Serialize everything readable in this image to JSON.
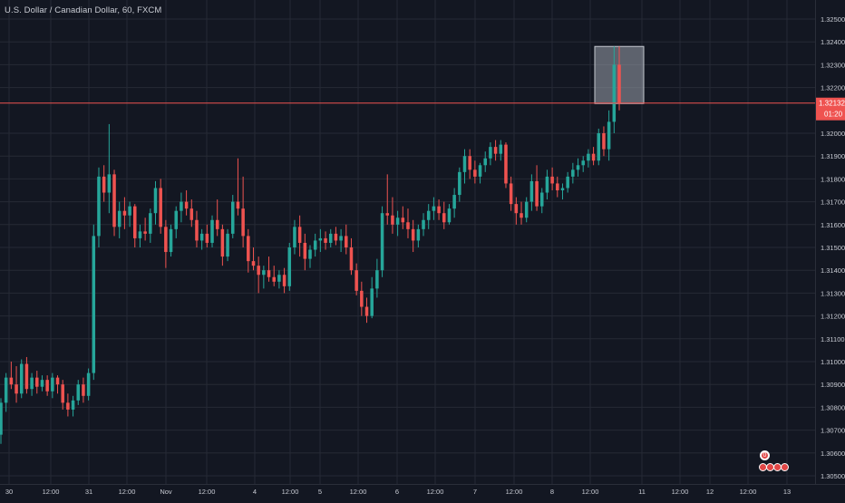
{
  "title": "U.S. Dollar / Canadian Dollar, 60, FXCM",
  "colors": {
    "background": "#131722",
    "grid": "#262a35",
    "up": "#26a69a",
    "down": "#ef5350",
    "text": "#c9ccd4",
    "price_line": "#ef5350",
    "highlight": "#9aa0ab"
  },
  "current_price": {
    "value": "1.32132",
    "countdown": "01:20"
  },
  "events": {
    "single": "0",
    "group_count": 4
  },
  "chart_data": {
    "type": "candlestick",
    "title": "U.S. Dollar / Canadian Dollar, 60, FXCM",
    "y_range": [
      1.3048,
      1.3258
    ],
    "y_ticks": [
      "1.32500",
      "1.32400",
      "1.32300",
      "1.32200",
      "1.32000",
      "1.31900",
      "1.31800",
      "1.31700",
      "1.31600",
      "1.31500",
      "1.31400",
      "1.31300",
      "1.31200",
      "1.31100",
      "1.31000",
      "1.30900",
      "1.30800",
      "1.30700",
      "1.30600",
      "1.30500"
    ],
    "x_ticks": [
      "30",
      "12:00",
      "31",
      "12:00",
      "Nov",
      "12:00",
      "4",
      "12:00",
      "5",
      "12:00",
      "6",
      "12:00",
      "7",
      "12:00",
      "8",
      "12:00",
      "11",
      "12:00",
      "12",
      "12:00",
      "13"
    ],
    "highlight_range": {
      "low": 1.3213,
      "high": 1.3238
    },
    "candles": [
      [
        1.3068,
        1.3084,
        1.3064,
        1.3082
      ],
      [
        1.3082,
        1.3095,
        1.3078,
        1.3093
      ],
      [
        1.3093,
        1.31,
        1.3088,
        1.309
      ],
      [
        1.309,
        1.3098,
        1.3082,
        1.3086
      ],
      [
        1.3086,
        1.3101,
        1.3084,
        1.3099
      ],
      [
        1.3099,
        1.3102,
        1.3086,
        1.3088
      ],
      [
        1.3088,
        1.3095,
        1.3085,
        1.3093
      ],
      [
        1.3093,
        1.3096,
        1.3086,
        1.3089
      ],
      [
        1.3089,
        1.3094,
        1.3087,
        1.3092
      ],
      [
        1.3092,
        1.3094,
        1.3085,
        1.3087
      ],
      [
        1.3087,
        1.3095,
        1.3084,
        1.3093
      ],
      [
        1.3093,
        1.3094,
        1.3086,
        1.309
      ],
      [
        1.309,
        1.3092,
        1.3079,
        1.3082
      ],
      [
        1.3082,
        1.3086,
        1.3076,
        1.3079
      ],
      [
        1.3079,
        1.3085,
        1.3076,
        1.3083
      ],
      [
        1.3083,
        1.3092,
        1.3081,
        1.309
      ],
      [
        1.309,
        1.3093,
        1.3082,
        1.3085
      ],
      [
        1.3085,
        1.3097,
        1.3083,
        1.3095
      ],
      [
        1.3095,
        1.316,
        1.3092,
        1.3155
      ],
      [
        1.3155,
        1.3185,
        1.315,
        1.3181
      ],
      [
        1.3181,
        1.3186,
        1.317,
        1.3174
      ],
      [
        1.3174,
        1.3204,
        1.3165,
        1.3182
      ],
      [
        1.3182,
        1.3184,
        1.3155,
        1.3159
      ],
      [
        1.3159,
        1.317,
        1.3154,
        1.3166
      ],
      [
        1.3166,
        1.3172,
        1.3158,
        1.3164
      ],
      [
        1.3164,
        1.317,
        1.3159,
        1.3168
      ],
      [
        1.3168,
        1.3169,
        1.315,
        1.3154
      ],
      [
        1.3154,
        1.316,
        1.315,
        1.3157
      ],
      [
        1.3157,
        1.3163,
        1.3153,
        1.3156
      ],
      [
        1.3156,
        1.3167,
        1.3152,
        1.3165
      ],
      [
        1.3165,
        1.3179,
        1.316,
        1.3176
      ],
      [
        1.3176,
        1.318,
        1.3156,
        1.3159
      ],
      [
        1.3159,
        1.3162,
        1.3141,
        1.3148
      ],
      [
        1.3148,
        1.316,
        1.3146,
        1.3158
      ],
      [
        1.3158,
        1.3168,
        1.3154,
        1.3166
      ],
      [
        1.3166,
        1.3174,
        1.3161,
        1.317
      ],
      [
        1.317,
        1.3175,
        1.3164,
        1.3167
      ],
      [
        1.3167,
        1.3171,
        1.3159,
        1.3162
      ],
      [
        1.3162,
        1.3166,
        1.315,
        1.3153
      ],
      [
        1.3153,
        1.3158,
        1.3149,
        1.3156
      ],
      [
        1.3156,
        1.316,
        1.315,
        1.3152
      ],
      [
        1.3152,
        1.3164,
        1.315,
        1.3162
      ],
      [
        1.3162,
        1.3171,
        1.3155,
        1.3158
      ],
      [
        1.3158,
        1.316,
        1.3142,
        1.3146
      ],
      [
        1.3146,
        1.3158,
        1.3144,
        1.3156
      ],
      [
        1.3156,
        1.3173,
        1.3154,
        1.317
      ],
      [
        1.317,
        1.3189,
        1.3164,
        1.3167
      ],
      [
        1.3167,
        1.3181,
        1.315,
        1.3155
      ],
      [
        1.3155,
        1.3158,
        1.3139,
        1.3144
      ],
      [
        1.3144,
        1.315,
        1.314,
        1.3142
      ],
      [
        1.3142,
        1.3146,
        1.313,
        1.3138
      ],
      [
        1.3138,
        1.3142,
        1.3132,
        1.314
      ],
      [
        1.314,
        1.3146,
        1.3135,
        1.3137
      ],
      [
        1.3137,
        1.3142,
        1.3133,
        1.3135
      ],
      [
        1.3135,
        1.314,
        1.3132,
        1.3138
      ],
      [
        1.3138,
        1.3141,
        1.313,
        1.3133
      ],
      [
        1.3133,
        1.3152,
        1.3131,
        1.315
      ],
      [
        1.315,
        1.3162,
        1.3147,
        1.3159
      ],
      [
        1.3159,
        1.3164,
        1.3146,
        1.3152
      ],
      [
        1.3152,
        1.3156,
        1.314,
        1.3145
      ],
      [
        1.3145,
        1.3151,
        1.3141,
        1.3149
      ],
      [
        1.3149,
        1.3156,
        1.3146,
        1.3153
      ],
      [
        1.3153,
        1.3158,
        1.3148,
        1.3154
      ],
      [
        1.3154,
        1.3157,
        1.3149,
        1.3152
      ],
      [
        1.3152,
        1.3158,
        1.315,
        1.3156
      ],
      [
        1.3156,
        1.3159,
        1.3151,
        1.3153
      ],
      [
        1.3153,
        1.3158,
        1.3148,
        1.3155
      ],
      [
        1.3155,
        1.316,
        1.3147,
        1.315
      ],
      [
        1.315,
        1.3154,
        1.3138,
        1.314
      ],
      [
        1.314,
        1.3143,
        1.3129,
        1.3131
      ],
      [
        1.3131,
        1.3135,
        1.312,
        1.3124
      ],
      [
        1.3124,
        1.3128,
        1.3117,
        1.312
      ],
      [
        1.312,
        1.3137,
        1.3119,
        1.3132
      ],
      [
        1.3132,
        1.3145,
        1.3128,
        1.314
      ],
      [
        1.314,
        1.3168,
        1.3137,
        1.3165
      ],
      [
        1.3165,
        1.3182,
        1.316,
        1.3164
      ],
      [
        1.3164,
        1.3172,
        1.3156,
        1.316
      ],
      [
        1.316,
        1.3166,
        1.3155,
        1.3163
      ],
      [
        1.3163,
        1.3168,
        1.3158,
        1.3161
      ],
      [
        1.3161,
        1.3167,
        1.3154,
        1.3158
      ],
      [
        1.3158,
        1.3162,
        1.3148,
        1.3153
      ],
      [
        1.3153,
        1.316,
        1.315,
        1.3158
      ],
      [
        1.3158,
        1.3165,
        1.3155,
        1.3162
      ],
      [
        1.3162,
        1.3169,
        1.3158,
        1.3166
      ],
      [
        1.3166,
        1.3172,
        1.3162,
        1.3168
      ],
      [
        1.3168,
        1.3171,
        1.3162,
        1.3165
      ],
      [
        1.3165,
        1.317,
        1.3158,
        1.3161
      ],
      [
        1.3161,
        1.3169,
        1.316,
        1.3167
      ],
      [
        1.3167,
        1.3176,
        1.3163,
        1.3173
      ],
      [
        1.3173,
        1.3185,
        1.317,
        1.3183
      ],
      [
        1.3183,
        1.3193,
        1.3178,
        1.319
      ],
      [
        1.319,
        1.3193,
        1.318,
        1.3184
      ],
      [
        1.3184,
        1.3188,
        1.3178,
        1.3181
      ],
      [
        1.3181,
        1.3187,
        1.3178,
        1.3186
      ],
      [
        1.3186,
        1.3192,
        1.3183,
        1.3189
      ],
      [
        1.3189,
        1.3196,
        1.3186,
        1.3194
      ],
      [
        1.3194,
        1.3197,
        1.3188,
        1.3191
      ],
      [
        1.3191,
        1.3197,
        1.3188,
        1.3195
      ],
      [
        1.3195,
        1.3196,
        1.3176,
        1.3178
      ],
      [
        1.3178,
        1.3181,
        1.3166,
        1.3169
      ],
      [
        1.3169,
        1.3172,
        1.316,
        1.3165
      ],
      [
        1.3165,
        1.317,
        1.316,
        1.3163
      ],
      [
        1.3163,
        1.3172,
        1.3161,
        1.317
      ],
      [
        1.317,
        1.3182,
        1.3166,
        1.3179
      ],
      [
        1.3179,
        1.3186,
        1.3166,
        1.3168
      ],
      [
        1.3168,
        1.3176,
        1.3165,
        1.3174
      ],
      [
        1.3174,
        1.3184,
        1.3171,
        1.3181
      ],
      [
        1.3181,
        1.3185,
        1.3175,
        1.3178
      ],
      [
        1.3178,
        1.3181,
        1.3172,
        1.3175
      ],
      [
        1.3175,
        1.3178,
        1.3171,
        1.3176
      ],
      [
        1.3176,
        1.3183,
        1.3174,
        1.3181
      ],
      [
        1.3181,
        1.3187,
        1.3178,
        1.3184
      ],
      [
        1.3184,
        1.3189,
        1.3181,
        1.3186
      ],
      [
        1.3186,
        1.319,
        1.3183,
        1.3188
      ],
      [
        1.3188,
        1.3193,
        1.3185,
        1.3191
      ],
      [
        1.3191,
        1.3194,
        1.3186,
        1.3188
      ],
      [
        1.3188,
        1.3202,
        1.3186,
        1.32
      ],
      [
        1.32,
        1.3203,
        1.319,
        1.3193
      ],
      [
        1.3193,
        1.321,
        1.3188,
        1.3205
      ],
      [
        1.3205,
        1.3238,
        1.32,
        1.323
      ],
      [
        1.323,
        1.3238,
        1.321,
        1.3213
      ]
    ]
  }
}
